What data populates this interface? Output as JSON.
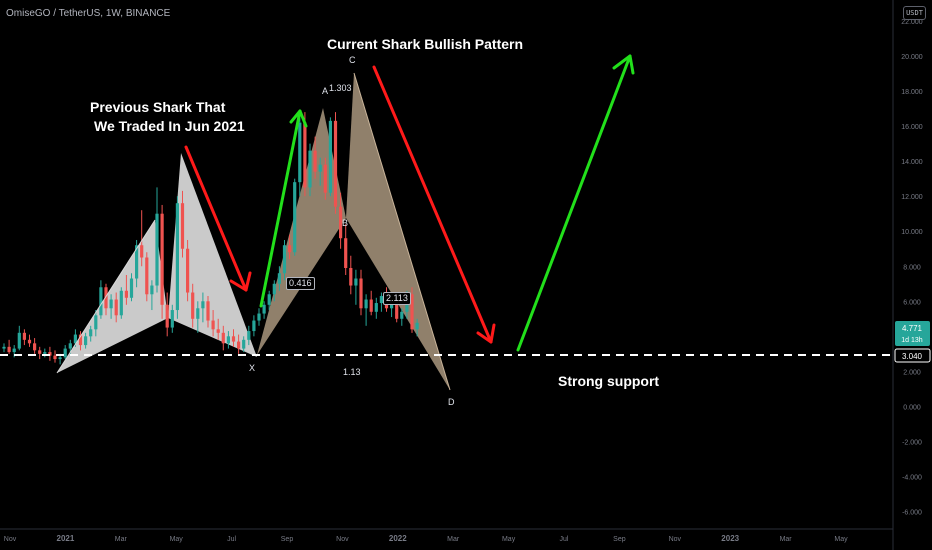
{
  "header": {
    "symbol_line": "OmiseGO / TetherUS, 1W, BINANCE",
    "currency": "USDT"
  },
  "annotations": {
    "current_pattern": "Current Shark Bullish Pattern",
    "previous_line1": "Previous Shark That",
    "previous_line2": "We Traded In Jun 2021",
    "support": "Strong support"
  },
  "pattern_points": {
    "x": "X",
    "a": "A",
    "b": "B",
    "c": "C",
    "d": "D"
  },
  "ratios": {
    "xa": "0.416",
    "ac": "1.303",
    "bc": "2.113",
    "xd": "1.13"
  },
  "price_box": {
    "price": "4.771",
    "countdown": "1d 13h"
  },
  "support_label": "3.040",
  "colors": {
    "up": "#26a69a",
    "down": "#ef5350",
    "bull_arrow": "#22e01b",
    "bear_arrow": "#ff1a1a",
    "prev_pattern": "#d9d9d9",
    "curr_pattern": "#c9b49a"
  },
  "chart_data": {
    "type": "candlestick",
    "title": "OmiseGO / TetherUS, 1W, BINANCE",
    "ylim": [
      -7,
      23.2
    ],
    "y_ticks": [
      "22.000",
      "20.000",
      "18.000",
      "16.000",
      "14.000",
      "12.000",
      "10.000",
      "8.000",
      "6.000",
      "4.000",
      "2.000",
      "0.000",
      "-2.000",
      "-4.000",
      "-6.000"
    ],
    "x_ticks": [
      "Nov",
      "2021",
      "Mar",
      "May",
      "Jul",
      "Sep",
      "Nov",
      "2022",
      "Mar",
      "May",
      "Jul",
      "Sep",
      "Nov",
      "2023",
      "Mar",
      "May"
    ],
    "support_level": 3.04,
    "last_price": 4.771,
    "candles": [
      [
        3.3,
        3.6,
        3.1,
        3.4
      ],
      [
        3.4,
        3.8,
        3.0,
        3.1
      ],
      [
        3.1,
        3.5,
        2.8,
        3.3
      ],
      [
        3.3,
        4.6,
        3.2,
        4.2
      ],
      [
        4.2,
        4.4,
        3.5,
        3.8
      ],
      [
        3.8,
        4.1,
        3.4,
        3.6
      ],
      [
        3.6,
        3.9,
        3.0,
        3.2
      ],
      [
        3.2,
        3.4,
        2.7,
        3.0
      ],
      [
        3.0,
        3.3,
        2.8,
        3.1
      ],
      [
        3.1,
        3.4,
        2.6,
        2.9
      ],
      [
        2.9,
        3.2,
        2.5,
        2.7
      ],
      [
        2.7,
        3.0,
        2.4,
        2.8
      ],
      [
        2.8,
        3.5,
        2.7,
        3.3
      ],
      [
        3.3,
        3.8,
        3.0,
        3.6
      ],
      [
        3.6,
        4.4,
        3.4,
        4.1
      ],
      [
        4.1,
        4.3,
        3.2,
        3.5
      ],
      [
        3.5,
        4.2,
        3.3,
        4.0
      ],
      [
        4.0,
        4.6,
        3.7,
        4.4
      ],
      [
        4.4,
        5.5,
        4.0,
        5.2
      ],
      [
        5.2,
        7.2,
        5.0,
        6.8
      ],
      [
        6.8,
        7.0,
        5.2,
        5.6
      ],
      [
        5.6,
        6.4,
        5.0,
        6.1
      ],
      [
        6.1,
        6.5,
        4.8,
        5.2
      ],
      [
        5.2,
        6.8,
        5.0,
        6.6
      ],
      [
        6.6,
        7.5,
        5.8,
        6.2
      ],
      [
        6.2,
        7.6,
        6.0,
        7.3
      ],
      [
        7.3,
        9.5,
        6.8,
        9.2
      ],
      [
        9.2,
        11.2,
        8.0,
        8.5
      ],
      [
        8.5,
        8.8,
        6.0,
        6.4
      ],
      [
        6.4,
        7.2,
        5.5,
        6.9
      ],
      [
        6.9,
        12.5,
        6.5,
        11.0
      ],
      [
        11.0,
        11.5,
        5.0,
        5.8
      ],
      [
        5.8,
        6.5,
        4.0,
        4.5
      ],
      [
        4.5,
        5.8,
        4.2,
        5.5
      ],
      [
        5.5,
        12.0,
        5.0,
        11.6
      ],
      [
        11.6,
        12.3,
        8.5,
        9.0
      ],
      [
        9.0,
        9.5,
        6.0,
        6.5
      ],
      [
        6.5,
        7.0,
        4.5,
        5.0
      ],
      [
        5.0,
        6.0,
        4.2,
        5.6
      ],
      [
        5.6,
        6.5,
        4.8,
        6.0
      ],
      [
        6.0,
        6.3,
        4.5,
        4.9
      ],
      [
        4.9,
        5.5,
        4.0,
        4.4
      ],
      [
        4.4,
        5.0,
        3.8,
        4.2
      ],
      [
        4.2,
        4.6,
        3.2,
        3.6
      ],
      [
        3.6,
        4.3,
        3.3,
        4.0
      ],
      [
        4.0,
        4.4,
        3.4,
        3.7
      ],
      [
        3.7,
        4.1,
        3.0,
        3.3
      ],
      [
        3.3,
        4.0,
        3.1,
        3.8
      ],
      [
        3.8,
        4.6,
        3.5,
        4.3
      ],
      [
        4.3,
        5.2,
        4.0,
        4.9
      ],
      [
        4.9,
        5.6,
        4.6,
        5.3
      ],
      [
        5.3,
        6.0,
        5.0,
        5.8
      ],
      [
        5.8,
        6.6,
        5.5,
        6.4
      ],
      [
        6.4,
        7.2,
        6.0,
        7.0
      ],
      [
        7.0,
        8.0,
        6.6,
        7.6
      ],
      [
        7.6,
        9.5,
        7.2,
        9.2
      ],
      [
        9.2,
        9.8,
        8.4,
        8.8
      ],
      [
        8.8,
        13.0,
        8.6,
        12.8
      ],
      [
        12.8,
        16.5,
        12.0,
        16.2
      ],
      [
        16.2,
        16.8,
        12.0,
        12.5
      ],
      [
        12.5,
        15.0,
        12.0,
        14.6
      ],
      [
        14.6,
        15.4,
        13.0,
        13.4
      ],
      [
        13.4,
        14.2,
        12.6,
        13.8
      ],
      [
        13.8,
        14.2,
        11.8,
        12.2
      ],
      [
        12.2,
        16.5,
        12.0,
        16.3
      ],
      [
        16.3,
        16.8,
        11.0,
        11.4
      ],
      [
        11.4,
        12.2,
        9.0,
        9.6
      ],
      [
        9.6,
        10.4,
        7.5,
        7.9
      ],
      [
        7.9,
        8.6,
        6.4,
        6.9
      ],
      [
        6.9,
        7.8,
        5.8,
        7.3
      ],
      [
        7.3,
        7.8,
        5.2,
        5.6
      ],
      [
        5.6,
        6.4,
        4.6,
        6.1
      ],
      [
        6.1,
        6.6,
        5.2,
        5.4
      ],
      [
        5.4,
        6.2,
        5.0,
        5.9
      ],
      [
        5.9,
        6.5,
        5.4,
        6.3
      ],
      [
        6.3,
        6.8,
        5.4,
        5.6
      ],
      [
        5.6,
        6.2,
        5.1,
        5.8
      ],
      [
        5.8,
        6.3,
        4.8,
        5.0
      ],
      [
        5.0,
        5.6,
        4.6,
        5.4
      ],
      [
        5.4,
        6.6,
        5.0,
        6.4
      ],
      [
        6.4,
        6.8,
        4.2,
        4.4
      ],
      [
        4.4,
        5.0,
        4.0,
        4.771
      ]
    ]
  }
}
